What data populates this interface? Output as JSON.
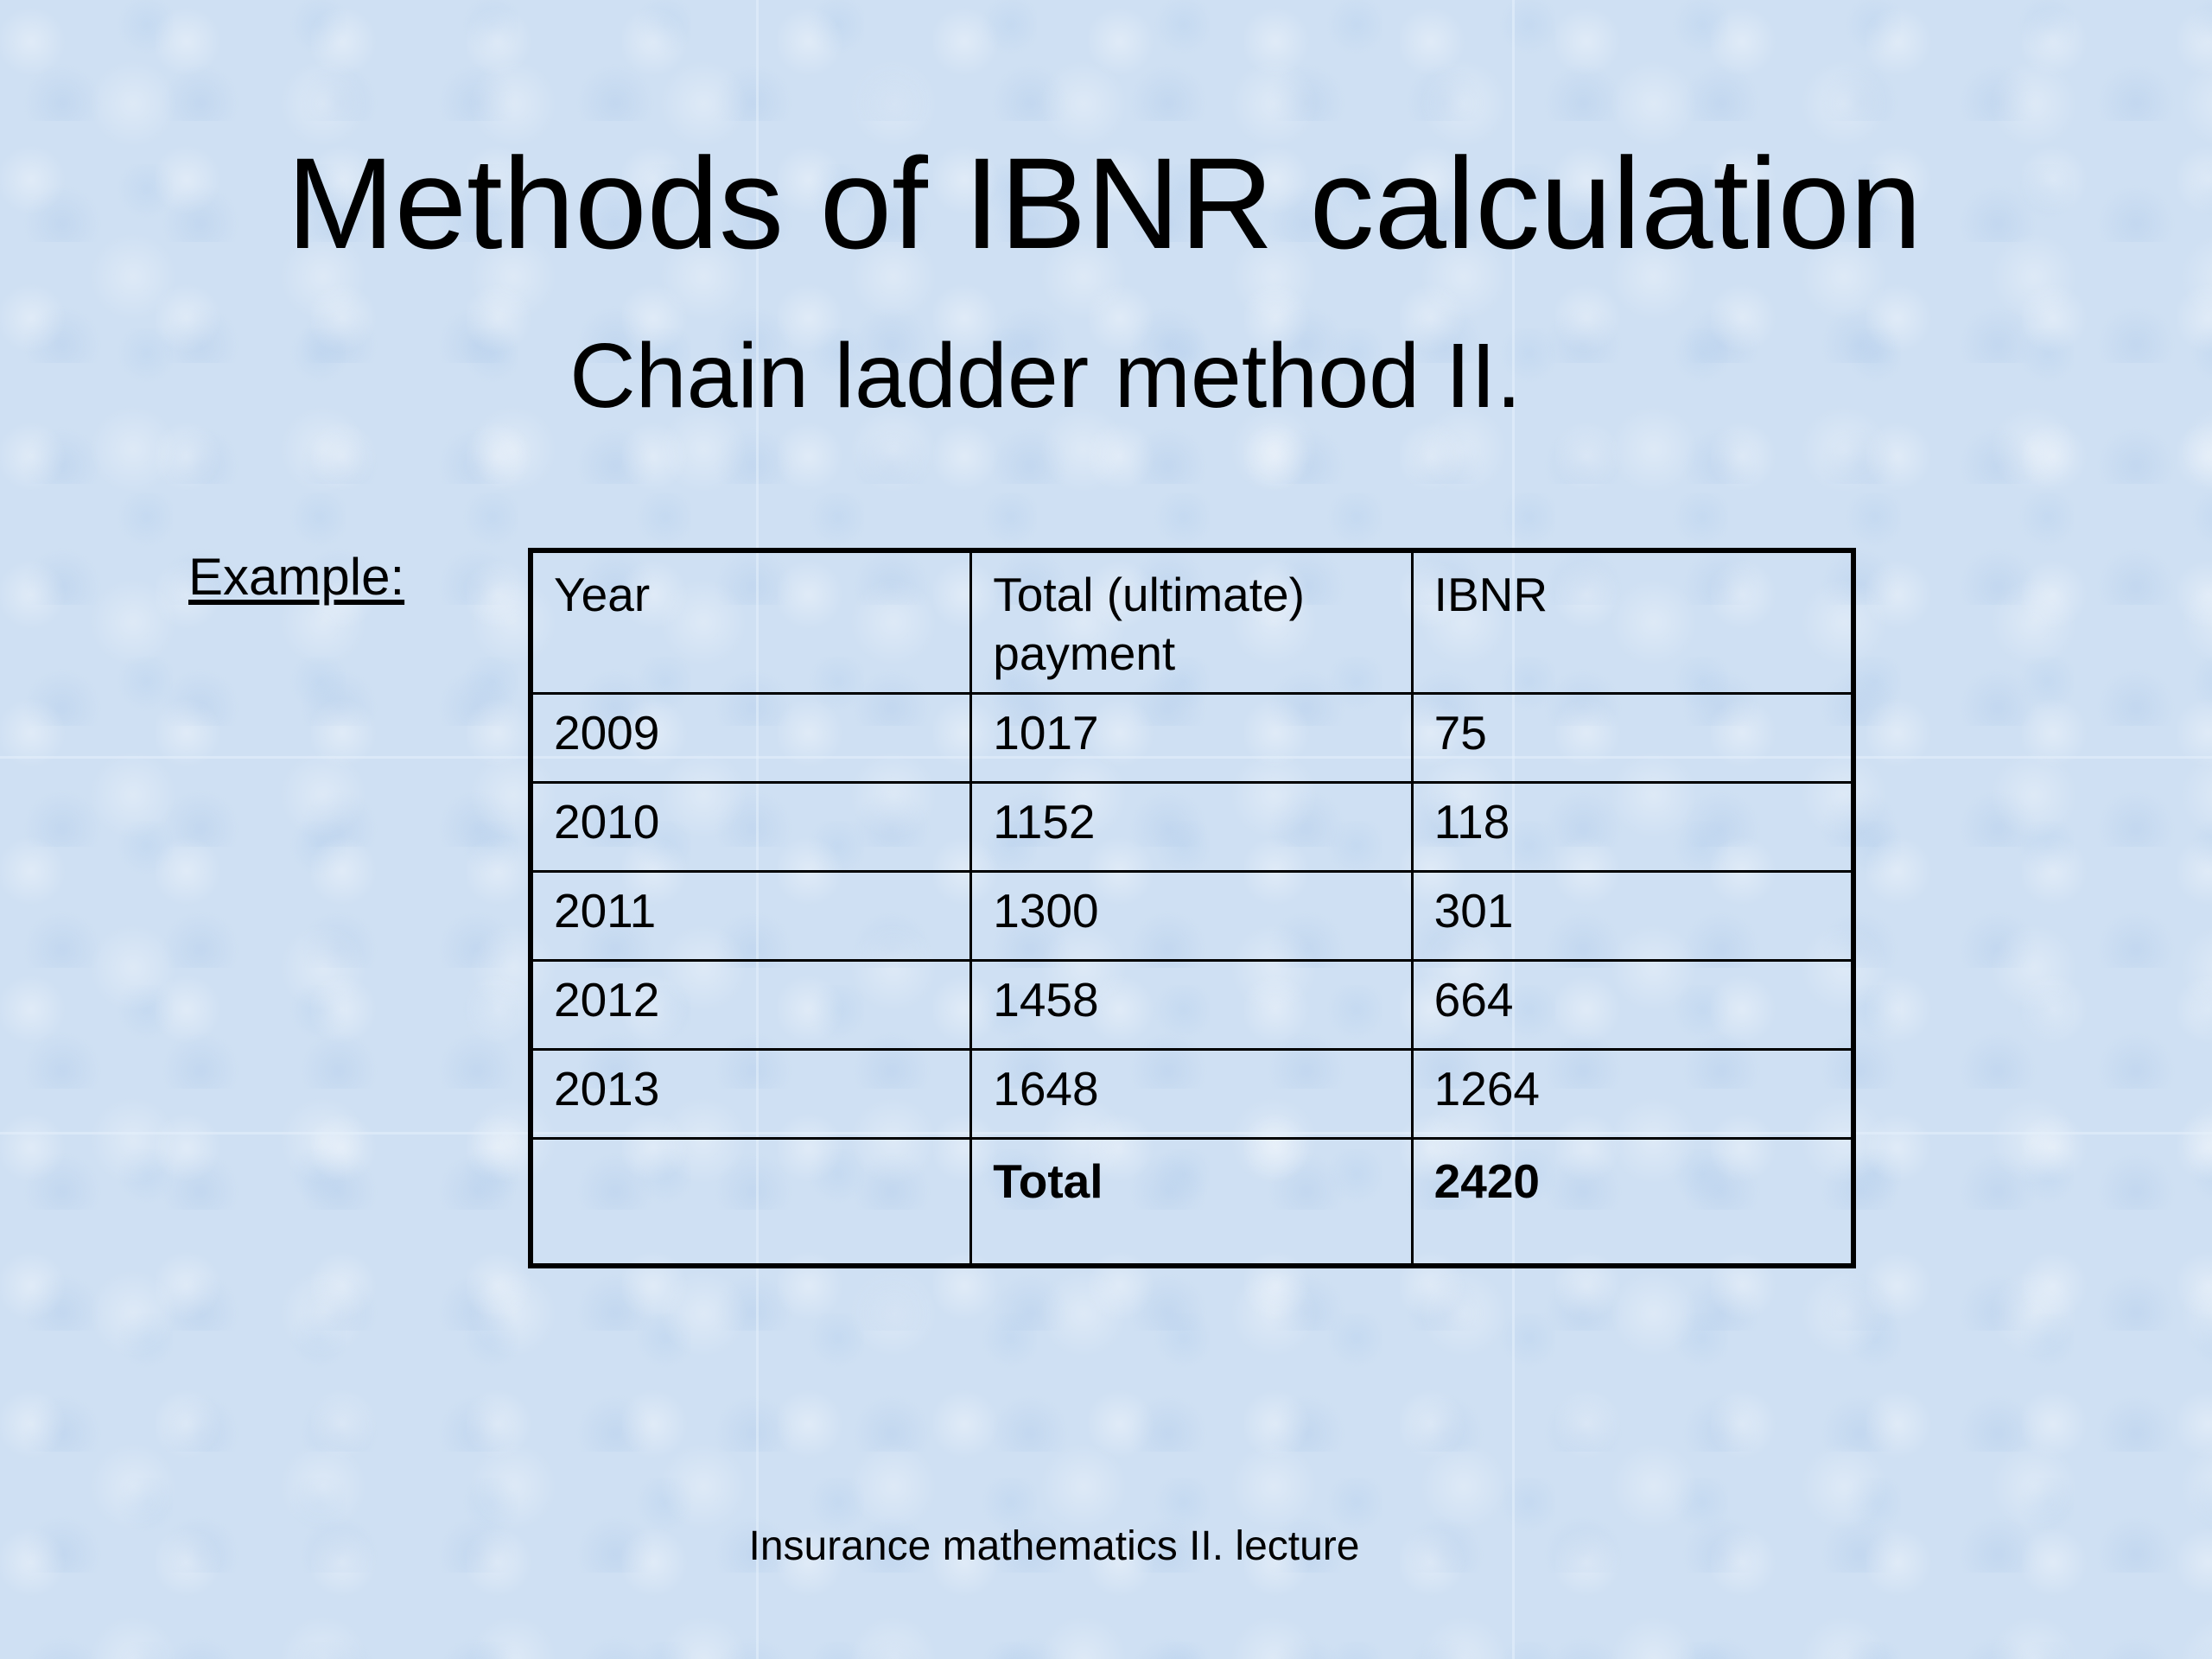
{
  "slide": {
    "title": "Methods of IBNR calculation",
    "subtitle": "Chain ladder method II.",
    "example_label": "Example:",
    "footer": "Insurance mathematics II. lecture"
  },
  "table": {
    "headers": [
      "Year",
      "Total (ultimate) payment",
      "IBNR"
    ],
    "rows": [
      [
        "2009",
        "1017",
        "75"
      ],
      [
        "2010",
        "1152",
        "118"
      ],
      [
        "2011",
        "1300",
        "301"
      ],
      [
        "2012",
        "1458",
        "664"
      ],
      [
        "2013",
        "1648",
        "1264"
      ]
    ],
    "total_row": [
      "",
      "Total",
      "2420"
    ]
  },
  "colors": {
    "background": "#cfe0f3",
    "text": "#000000",
    "table_border": "#000000"
  }
}
